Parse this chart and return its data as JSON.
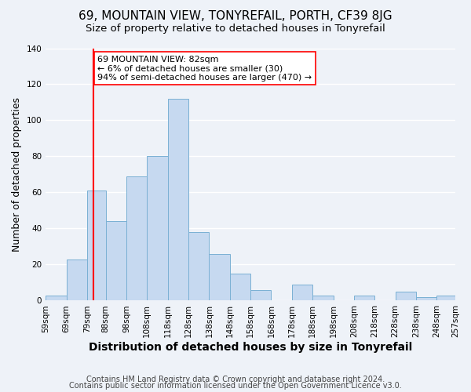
{
  "title": "69, MOUNTAIN VIEW, TONYREFAIL, PORTH, CF39 8JG",
  "subtitle": "Size of property relative to detached houses in Tonyrefail",
  "xlabel": "Distribution of detached houses by size in Tonyrefail",
  "ylabel": "Number of detached properties",
  "bin_edges": [
    59,
    69,
    79,
    88,
    98,
    108,
    118,
    128,
    138,
    148,
    158,
    168,
    178,
    188,
    198,
    208,
    218,
    228,
    238,
    248,
    257
  ],
  "bar_heights": [
    3,
    23,
    61,
    44,
    69,
    80,
    112,
    38,
    26,
    15,
    6,
    0,
    9,
    3,
    0,
    3,
    0,
    5,
    2,
    3
  ],
  "bar_color": "#c6d9f0",
  "bar_edgecolor": "#7ab0d4",
  "vline_x": 82,
  "vline_color": "red",
  "annotation_text": "69 MOUNTAIN VIEW: 82sqm\n← 6% of detached houses are smaller (30)\n94% of semi-detached houses are larger (470) →",
  "annotation_box_edgecolor": "red",
  "annotation_box_facecolor": "white",
  "ylim": [
    0,
    140
  ],
  "xlim": [
    59,
    257
  ],
  "tick_labels": [
    "59sqm",
    "69sqm",
    "79sqm",
    "88sqm",
    "98sqm",
    "108sqm",
    "118sqm",
    "128sqm",
    "138sqm",
    "148sqm",
    "158sqm",
    "168sqm",
    "178sqm",
    "188sqm",
    "198sqm",
    "208sqm",
    "218sqm",
    "228sqm",
    "238sqm",
    "248sqm",
    "257sqm"
  ],
  "tick_positions": [
    59,
    69,
    79,
    88,
    98,
    108,
    118,
    128,
    138,
    148,
    158,
    168,
    178,
    188,
    198,
    208,
    218,
    228,
    238,
    248,
    257
  ],
  "footer_line1": "Contains HM Land Registry data © Crown copyright and database right 2024.",
  "footer_line2": "Contains public sector information licensed under the Open Government Licence v3.0.",
  "background_color": "#eef2f8",
  "grid_color": "white",
  "title_fontsize": 11,
  "subtitle_fontsize": 9.5,
  "xlabel_fontsize": 10,
  "ylabel_fontsize": 9,
  "tick_fontsize": 7.5,
  "footer_fontsize": 7,
  "annotation_fontsize": 8
}
